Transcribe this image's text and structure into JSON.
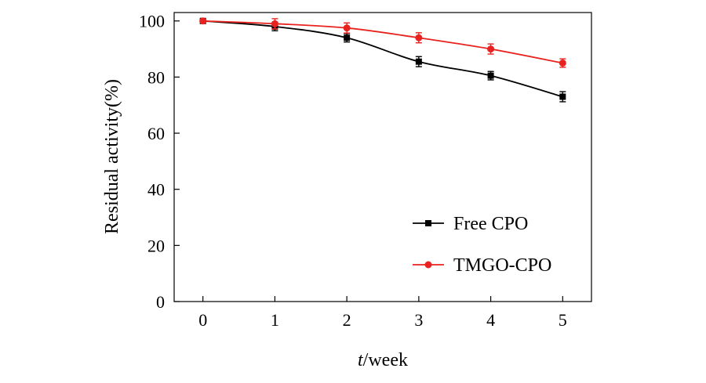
{
  "chart_data": {
    "type": "line",
    "title": "",
    "xlabel_italic": "t",
    "xlabel_rest": "/week",
    "ylabel": "Residual activity(%)",
    "x": [
      0,
      1,
      2,
      3,
      4,
      5
    ],
    "xlim": [
      -0.4,
      5.4
    ],
    "ylim": [
      0,
      103
    ],
    "xticks": [
      0,
      1,
      2,
      3,
      4,
      5
    ],
    "yticks": [
      0,
      20,
      40,
      60,
      80,
      100
    ],
    "grid": false,
    "legend_position": "bottom-right",
    "series": [
      {
        "name": "Free CPO",
        "color": "#000000",
        "marker": "square",
        "values": [
          100,
          98,
          94,
          85.5,
          80.5,
          73
        ],
        "errors": [
          0.5,
          1.5,
          1.5,
          1.8,
          1.5,
          1.8
        ]
      },
      {
        "name": "TMGO-CPO",
        "color": "#e8231f",
        "marker": "circle",
        "values": [
          100,
          99,
          97.5,
          94,
          90,
          85
        ],
        "errors": [
          0.5,
          1.8,
          1.8,
          1.8,
          1.8,
          1.5
        ]
      }
    ]
  }
}
